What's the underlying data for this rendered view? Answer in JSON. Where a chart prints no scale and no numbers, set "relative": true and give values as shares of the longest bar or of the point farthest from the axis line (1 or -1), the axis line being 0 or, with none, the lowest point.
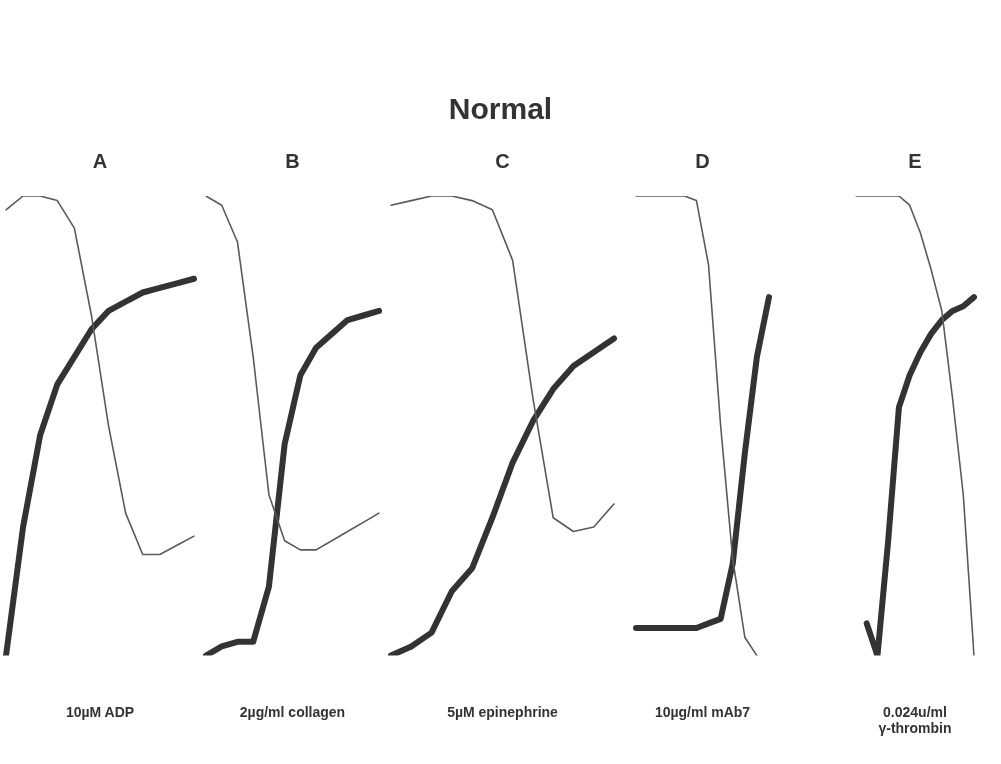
{
  "chart_data": [
    {
      "type": "other",
      "title": "Normal"
    },
    {
      "type": "line",
      "title": "A",
      "xlabel": "10µM ADP",
      "relative": true,
      "marker": "none",
      "categories": [
        null,
        null,
        null,
        null,
        null,
        null,
        null,
        null,
        null,
        null,
        null,
        null
      ],
      "series": [
        {
          "color": "#5a5a5a",
          "values": [
            0.97,
            1.0,
            1.0,
            0.99,
            0.93,
            0.74,
            0.5,
            0.31,
            0.22,
            0.22,
            0.24,
            0.26
          ]
        },
        {
          "color": "#333333",
          "values": [
            0,
            0.28,
            0.48,
            0.59,
            0.65,
            0.71,
            0.75,
            0.77,
            0.79,
            0.8,
            0.81,
            0.82
          ]
        }
      ]
    },
    {
      "type": "line",
      "title": "B",
      "xlabel": "2µg/ml collagen",
      "relative": true,
      "marker": "none",
      "categories": [
        null,
        null,
        null,
        null,
        null,
        null,
        null,
        null,
        null,
        null,
        null,
        null
      ],
      "series": [
        {
          "color": "#5a5a5a",
          "values": [
            1.0,
            0.98,
            0.9,
            0.65,
            0.35,
            0.25,
            0.23,
            0.23,
            0.25,
            0.27,
            0.29,
            0.31
          ]
        },
        {
          "color": "#333333",
          "values": [
            0,
            0.02,
            0.03,
            0.03,
            0.15,
            0.46,
            0.61,
            0.67,
            0.7,
            0.73,
            0.74,
            0.75
          ]
        }
      ]
    },
    {
      "type": "line",
      "title": "C",
      "xlabel": "5µM epinephrine",
      "relative": true,
      "marker": "none",
      "categories": [
        null,
        null,
        null,
        null,
        null,
        null,
        null,
        null,
        null,
        null,
        null,
        null
      ],
      "series": [
        {
          "color": "#5a5a5a",
          "values": [
            0.98,
            0.99,
            1.0,
            1.0,
            0.99,
            0.97,
            0.86,
            0.56,
            0.3,
            0.27,
            0.28,
            0.33
          ]
        },
        {
          "color": "#333333",
          "values": [
            0,
            0.02,
            0.05,
            0.14,
            0.19,
            0.3,
            0.42,
            0.51,
            0.58,
            0.63,
            0.66,
            0.69
          ]
        }
      ]
    },
    {
      "type": "line",
      "title": "D",
      "xlabel": "10µg/ml mAb7",
      "relative": true,
      "marker": "none",
      "categories": [
        null,
        null,
        null,
        null,
        null,
        null,
        null,
        null,
        null,
        null,
        null,
        null
      ],
      "series": [
        {
          "color": "#5a5a5a",
          "values": [
            1.0,
            1.0,
            1.0,
            1.0,
            1.0,
            0.99,
            0.85,
            0.5,
            0.21,
            0.04,
            0,
            null
          ]
        },
        {
          "color": "#333333",
          "values": [
            0.06,
            0.06,
            0.06,
            0.06,
            0.06,
            0.06,
            0.07,
            0.08,
            0.2,
            0.44,
            0.65,
            0.78
          ]
        }
      ]
    },
    {
      "type": "line",
      "title": "E",
      "xlabel": "0.024u/ml\nγ-thrombin",
      "relative": true,
      "marker": "none",
      "categories": [
        null,
        null,
        null,
        null,
        null,
        null,
        null,
        null,
        null,
        null,
        null,
        null
      ],
      "series": [
        {
          "color": "#5a5a5a",
          "values": [
            1.0,
            1.0,
            1.0,
            1.0,
            1.0,
            0.98,
            0.92,
            0.84,
            0.75,
            0.56,
            0.35,
            0
          ]
        },
        {
          "color": "#333333",
          "values": [
            null,
            0.07,
            0,
            0.25,
            0.54,
            0.61,
            0.66,
            0.7,
            0.73,
            0.75,
            0.76,
            0.78
          ]
        }
      ]
    }
  ]
}
